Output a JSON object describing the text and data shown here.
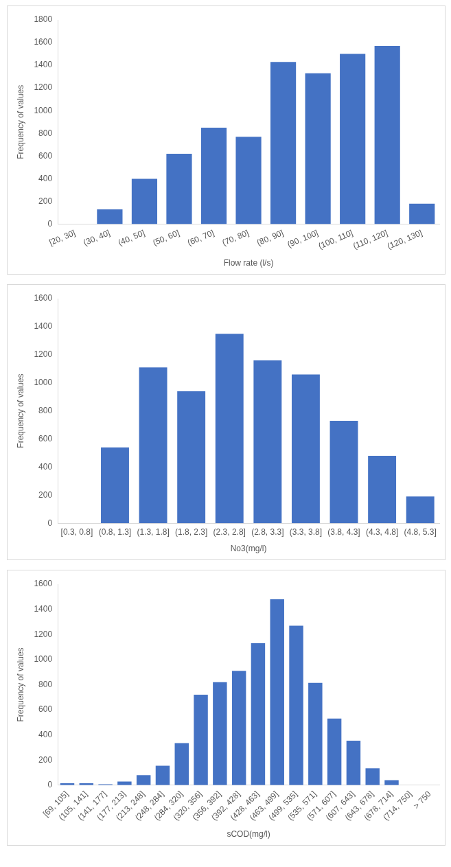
{
  "chart_data": [
    {
      "type": "bar",
      "xlabel": "Flow rate (l/s)",
      "ylabel": "Frequency of values",
      "categories": [
        "[20, 30]",
        "(30, 40]",
        "(40, 50]",
        "(50, 60]",
        "(60, 70]",
        "(70, 80]",
        "(80, 90]",
        "(90, 100]",
        "(100, 110]",
        "(110, 120]",
        "(120, 130]"
      ],
      "values": [
        0,
        130,
        400,
        620,
        850,
        770,
        1430,
        1330,
        1500,
        1570,
        180
      ],
      "color": "#4472c4",
      "ylim": [
        0,
        1800
      ],
      "yticks": [
        0,
        200,
        400,
        600,
        800,
        1000,
        1200,
        1400,
        1600,
        1800
      ],
      "grid": false,
      "legend": false
    },
    {
      "type": "bar",
      "xlabel": "No3(mg/l)",
      "ylabel": "Frequency of values",
      "categories": [
        "[0.3, 0.8]",
        "(0.8, 1.3]",
        "(1.3, 1.8]",
        "(1.8, 2.3]",
        "(2.3, 2.8]",
        "(2.8, 3.3]",
        "(3.3, 3.8]",
        "(3.8, 4.3]",
        "(4.3, 4.8]",
        "(4.8, 5.3]"
      ],
      "values": [
        0,
        540,
        1110,
        940,
        1350,
        1160,
        1060,
        730,
        480,
        190
      ],
      "color": "#4472c4",
      "ylim": [
        0,
        1600
      ],
      "yticks": [
        0,
        200,
        400,
        600,
        800,
        1000,
        1200,
        1400,
        1600
      ],
      "grid": false,
      "legend": false
    },
    {
      "type": "bar",
      "xlabel": "sCOD(mg/l)",
      "ylabel": "Frequency of values",
      "categories": [
        "[69, 105]",
        "(105, 141]",
        "(141, 177]",
        "(177, 213]",
        "(213, 248]",
        "(248, 284]",
        "(284, 320]",
        "(320, 356]",
        "(356, 392]",
        "(392, 428]",
        "(428, 463]",
        "(463, 499]",
        "(499, 535]",
        "(535, 571]",
        "(571, 607]",
        "(607, 643]",
        "(643, 678]",
        "(678, 714]",
        "(714, 750]",
        "> 750"
      ],
      "values": [
        15,
        15,
        8,
        30,
        80,
        155,
        335,
        720,
        820,
        910,
        1130,
        1480,
        1270,
        815,
        530,
        355,
        135,
        40,
        0,
        0
      ],
      "color": "#4472c4",
      "ylim": [
        0,
        1600
      ],
      "yticks": [
        0,
        200,
        400,
        600,
        800,
        1000,
        1200,
        1400,
        1600
      ],
      "grid": false,
      "legend": false
    }
  ]
}
